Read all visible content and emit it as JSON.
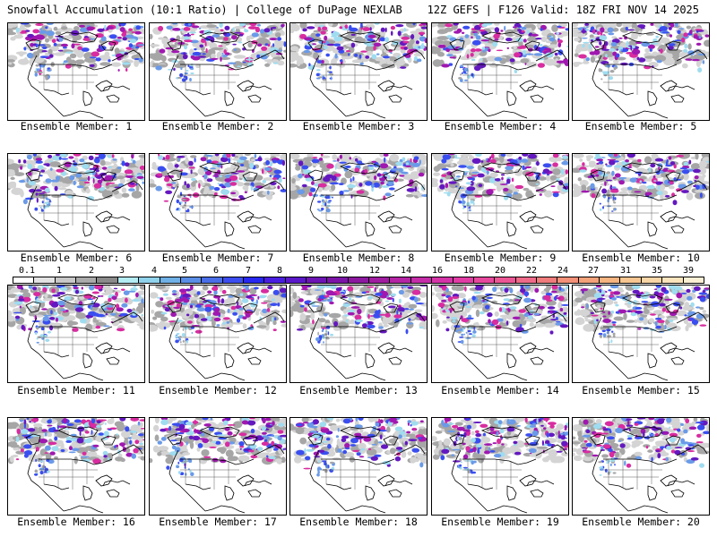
{
  "header": {
    "left": "Snowfall Accumulation (10:1 Ratio) | College of DuPage NEXLAB",
    "right": "12Z GEFS | F126 Valid: 18Z FRI NOV 14 2025"
  },
  "members": [
    "Ensemble Member: 1",
    "Ensemble Member: 2",
    "Ensemble Member: 3",
    "Ensemble Member: 4",
    "Ensemble Member: 5",
    "Ensemble Member: 6",
    "Ensemble Member: 7",
    "Ensemble Member: 8",
    "Ensemble Member: 9",
    "Ensemble Member: 10",
    "Ensemble Member: 11",
    "Ensemble Member: 12",
    "Ensemble Member: 13",
    "Ensemble Member: 14",
    "Ensemble Member: 15",
    "Ensemble Member: 16",
    "Ensemble Member: 17",
    "Ensemble Member: 18",
    "Ensemble Member: 19",
    "Ensemble Member: 20"
  ],
  "colorbar": {
    "ticks": [
      "0.1",
      "1",
      "2",
      "3",
      "4",
      "5",
      "6",
      "7",
      "8",
      "9",
      "10",
      "12",
      "14",
      "16",
      "18",
      "20",
      "22",
      "24",
      "27",
      "31",
      "35",
      "39"
    ],
    "colors": [
      "#ffffff",
      "#e2e2e2",
      "#c8c8c8",
      "#aaaaaa",
      "#8a8a8a",
      "#b4ecf4",
      "#8fd2ec",
      "#6fb0e6",
      "#5a8ee6",
      "#4a6ee8",
      "#3c4ef0",
      "#2828f0",
      "#4a1ee0",
      "#5a18c8",
      "#6c14b4",
      "#7c14a8",
      "#8c18a0",
      "#a01ca0",
      "#b424a4",
      "#c42ca8",
      "#d434a8",
      "#e03ca4",
      "#e6489c",
      "#ec5694",
      "#ee6a88",
      "#f07c7c",
      "#f29078",
      "#f4a27a",
      "#f6b480",
      "#f8c690",
      "#f8d6a6",
      "#fae4bc",
      "#fcf0d4"
    ]
  },
  "snow_colors": [
    "#d4d4d4",
    "#a6a6a6",
    "#9fdcf0",
    "#6a9ae8",
    "#3a4ef0",
    "#6418c0",
    "#a018b0",
    "#d82ca0"
  ]
}
